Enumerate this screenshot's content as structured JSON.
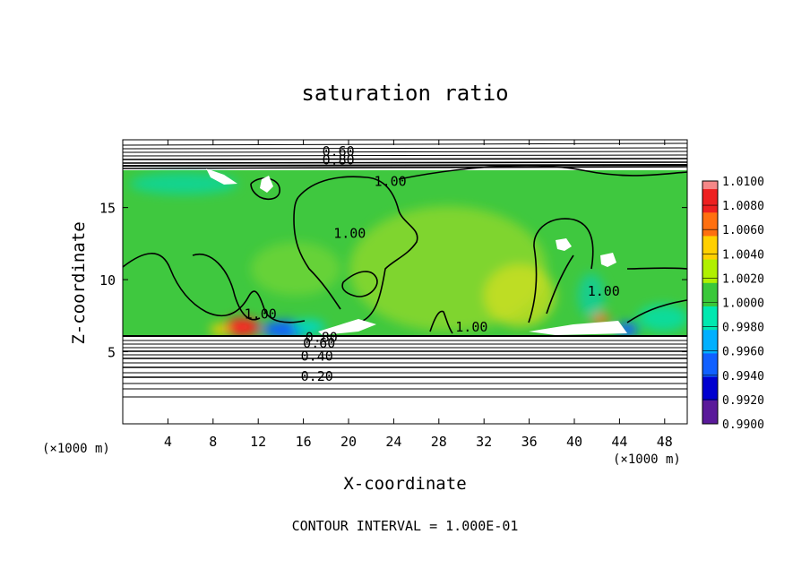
{
  "chart_data": {
    "type": "heatmap",
    "title": "saturation ratio",
    "xlabel": "X-coordinate",
    "ylabel": "Z-coordinate",
    "x_unit_left": "(×1000 m)",
    "x_unit_right": "(×1000 m)",
    "xlim": [
      0,
      50
    ],
    "ylim": [
      0,
      19.7
    ],
    "x_ticks": [
      4,
      8,
      12,
      16,
      20,
      24,
      28,
      32,
      36,
      40,
      44,
      48
    ],
    "y_ticks": [
      5,
      10,
      15
    ],
    "colorbar": {
      "range": [
        0.99,
        1.01
      ],
      "labels": [
        "1.0100",
        "1.0080",
        "1.0060",
        "1.0040",
        "1.0020",
        "1.0000",
        "0.9980",
        "0.9960",
        "0.9940",
        "0.9920",
        "0.9900"
      ],
      "colors": [
        "#ee2020",
        "#ff7010",
        "#ffd000",
        "#b0f000",
        "#3ac83a",
        "#00e8b0",
        "#00b0ff",
        "#1060ff",
        "#0000d0",
        "#5a1a9a"
      ],
      "top_color": "#f48888"
    },
    "contour_labels": [
      {
        "text": "0.60",
        "x": 19.1,
        "z": 18.9
      },
      {
        "text": "0.80",
        "x": 19.1,
        "z": 18.3
      },
      {
        "text": "1.00",
        "x": 23.7,
        "z": 16.8
      },
      {
        "text": "1.00",
        "x": 20.1,
        "z": 13.2
      },
      {
        "text": "1.00",
        "x": 12.2,
        "z": 7.6
      },
      {
        "text": "1.00",
        "x": 30.9,
        "z": 6.7
      },
      {
        "text": "1.00",
        "x": 42.6,
        "z": 9.2
      },
      {
        "text": "0.80",
        "x": 17.6,
        "z": 6.0
      },
      {
        "text": "0.60",
        "x": 17.4,
        "z": 5.6
      },
      {
        "text": "0.40",
        "x": 17.2,
        "z": 4.7
      },
      {
        "text": "0.20",
        "x": 17.2,
        "z": 3.3
      }
    ],
    "note": "CONTOUR INTERVAL = 1.000E-01"
  }
}
